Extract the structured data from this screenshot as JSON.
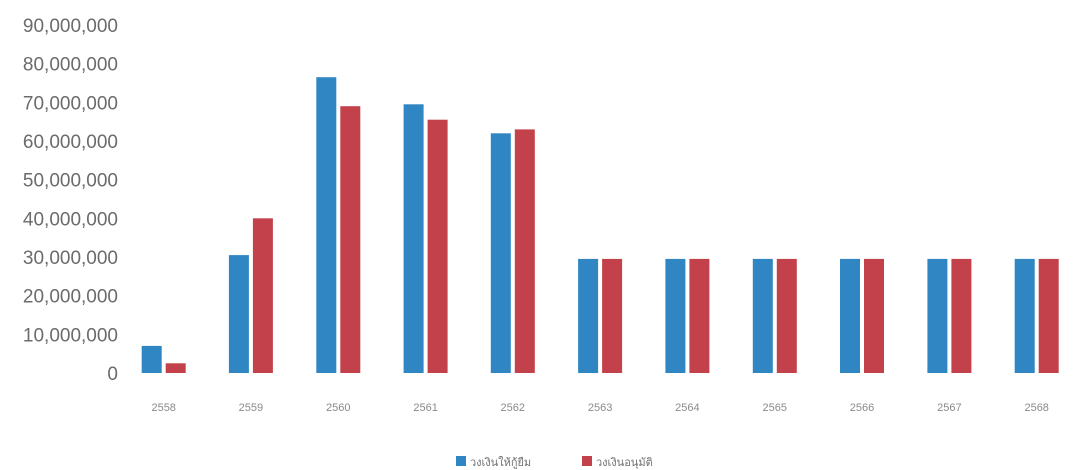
{
  "chart_data": {
    "type": "bar",
    "categories": [
      "2558",
      "2559",
      "2560",
      "2561",
      "2562",
      "2563",
      "2564",
      "2565",
      "2566",
      "2567",
      "2568"
    ],
    "series": [
      {
        "name": "วงเงินให้กู้ยืม",
        "color": "#2f86c3",
        "values": [
          7000000,
          30500000,
          76500000,
          69500000,
          62000000,
          29500000,
          29500000,
          29500000,
          29500000,
          29500000,
          29500000
        ]
      },
      {
        "name": "วงเงินอนุมัติ",
        "color": "#c2414b",
        "values": [
          2500000,
          40000000,
          69000000,
          65500000,
          63000000,
          29500000,
          29500000,
          29500000,
          29500000,
          29500000,
          29500000
        ]
      }
    ],
    "y_ticks": [
      "0",
      "10,000,000",
      "20,000,000",
      "30,000,000",
      "40,000,000",
      "50,000,000",
      "60,000,000",
      "70,000,000",
      "80,000,000",
      "90,000,000"
    ],
    "ylim": [
      0,
      90000000
    ],
    "grid": false,
    "legend_position": "bottom"
  }
}
